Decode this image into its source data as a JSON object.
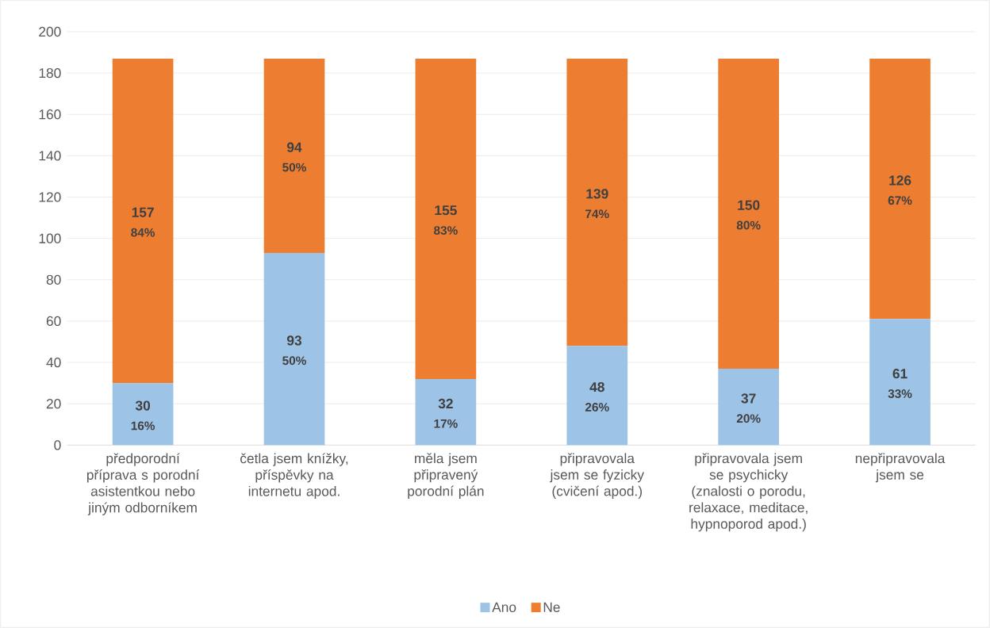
{
  "chart_data": {
    "type": "bar",
    "stacked": true,
    "categories": [
      "předporodní příprava s porodní asistentkou nebo jiným odborníkem",
      "četla jsem knížky, příspěvky na internetu apod.",
      "měla jsem připravený porodní plán",
      "připravovala jsem se fyzicky (cvičení apod.)",
      "připravovala jsem se psychicky (znalosti o porodu, relaxace, meditace, hypnoporod apod.)",
      "nepřipravovala jsem se"
    ],
    "series": [
      {
        "name": "Ano",
        "color": "#9dc3e6",
        "values": [
          30,
          93,
          32,
          48,
          37,
          61
        ]
      },
      {
        "name": "Ne",
        "color": "#ed7d31",
        "values": [
          157,
          94,
          155,
          139,
          150,
          126
        ]
      }
    ],
    "annotations": [
      "16%",
      "50%",
      "17%",
      "26%",
      "20%",
      "33%",
      "84%",
      "50%",
      "83%",
      "74%",
      "80%",
      "67%"
    ],
    "ylim": [
      0,
      200
    ],
    "yticks": [
      0,
      20,
      40,
      60,
      80,
      100,
      120,
      140,
      160,
      180,
      200
    ],
    "grid": "y",
    "legend": "bottom",
    "data_labels": true
  }
}
